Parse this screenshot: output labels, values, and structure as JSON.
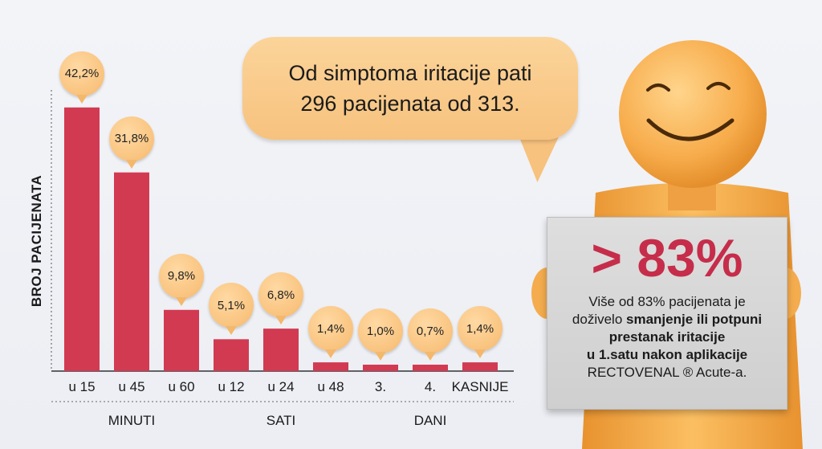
{
  "chart_data": {
    "type": "bar",
    "ylabel": "BROJ PACIJENATA",
    "categories": [
      "u 15",
      "u 45",
      "u 60",
      "u 12",
      "u 24",
      "u 48",
      "3.",
      "4.",
      "KASNIJE"
    ],
    "values": [
      42.2,
      31.8,
      9.8,
      5.1,
      6.8,
      1.4,
      1.0,
      0.7,
      1.4
    ],
    "value_labels": [
      "42,2%",
      "31,8%",
      "9,8%",
      "5,1%",
      "6,8%",
      "1,4%",
      "1,0%",
      "0,7%",
      "1,4%"
    ],
    "groups": [
      {
        "label": "MINUTI",
        "categories": [
          "u 15",
          "u 45",
          "u 60"
        ]
      },
      {
        "label": "SATI",
        "categories": [
          "u 12",
          "u 24",
          "u 48"
        ]
      },
      {
        "label": "DANI",
        "categories": [
          "3.",
          "4.",
          "KASNIJE"
        ]
      }
    ],
    "ylim": [
      0,
      45
    ],
    "grid": false,
    "bar_color": "#d23a52"
  },
  "speech": {
    "line1": "Od simptoma iritacije pati",
    "line2": "296 pacijenata od 313."
  },
  "sign": {
    "headline": "> 83%",
    "text_line1": "Više od 83% pacijenata je",
    "text_line2_plain": "doživelo ",
    "text_line2_bold": "smanjenje ili potpuni",
    "text_line3": "prestanak iritacije",
    "text_line4": "u 1.satu nakon aplikacije",
    "text_line5": "RECTOVENAL ® Acute-a."
  },
  "colors": {
    "bar": "#d23a52",
    "headline": "#c62d4a",
    "bubble": "#f7c27e",
    "figure": "#f5a94a"
  },
  "icons": [
    "smiling-figure-icon"
  ]
}
